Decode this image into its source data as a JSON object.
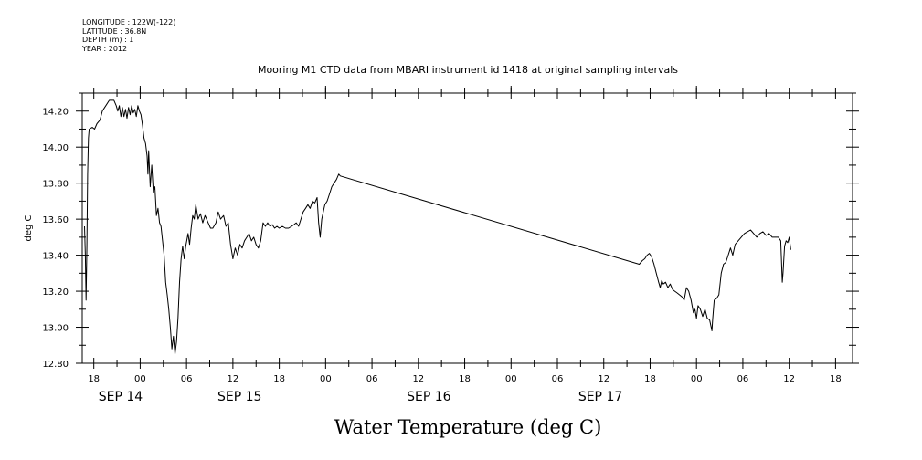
{
  "header_meta": [
    "LONGITUDE : 122W(-122)",
    "LATITUDE : 36.8N",
    "DEPTH (m) : 1",
    "YEAR : 2012"
  ],
  "chart_data": {
    "type": "line",
    "title": "Mooring M1 CTD data from MBARI instrument id 1418 at original sampling intervals",
    "xlabel": "Water Temperature (deg C)",
    "ylabel": "deg C",
    "x_units": "hours since 2012-09-14 00:00",
    "xlim": [
      -7.5,
      92.2
    ],
    "ylim": [
      12.8,
      14.3
    ],
    "y_ticks": [
      "12.80",
      "13.00",
      "13.20",
      "13.40",
      "13.60",
      "13.80",
      "14.00",
      "14.20"
    ],
    "y_tick_values": [
      12.8,
      13.0,
      13.2,
      13.4,
      13.6,
      13.8,
      14.0,
      14.2
    ],
    "x_hour_ticks": [
      {
        "h": -6,
        "label": "18"
      },
      {
        "h": 0,
        "label": "00"
      },
      {
        "h": 6,
        "label": "06"
      },
      {
        "h": 12,
        "label": "12"
      },
      {
        "h": 18,
        "label": "18"
      },
      {
        "h": 24,
        "label": "00"
      },
      {
        "h": 30,
        "label": "06"
      },
      {
        "h": 36,
        "label": "12"
      },
      {
        "h": 42,
        "label": "18"
      },
      {
        "h": 48,
        "label": "00"
      },
      {
        "h": 54,
        "label": "06"
      },
      {
        "h": 60,
        "label": "12"
      },
      {
        "h": 66,
        "label": "18"
      },
      {
        "h": 72,
        "label": "00"
      },
      {
        "h": 78,
        "label": "06"
      },
      {
        "h": 84,
        "label": "12"
      },
      {
        "h": 90,
        "label": "18"
      }
    ],
    "x_day_labels": [
      {
        "h": -5.4,
        "label": "SEP 14"
      },
      {
        "h": 10.0,
        "label": "SEP 15"
      },
      {
        "h": 34.5,
        "label": "SEP 16"
      },
      {
        "h": 56.7,
        "label": "SEP 17"
      }
    ],
    "grid": false,
    "series": [
      {
        "color": "#000000",
        "points": [
          [
            -7.2,
            13.56
          ],
          [
            -7.1,
            13.4
          ],
          [
            -7.0,
            13.15
          ],
          [
            -6.9,
            13.45
          ],
          [
            -6.8,
            13.85
          ],
          [
            -6.7,
            14.05
          ],
          [
            -6.6,
            14.1
          ],
          [
            -6.2,
            14.11
          ],
          [
            -5.9,
            14.1
          ],
          [
            -5.6,
            14.13
          ],
          [
            -5.2,
            14.15
          ],
          [
            -4.9,
            14.2
          ],
          [
            -4.6,
            14.22
          ],
          [
            -4.3,
            14.24
          ],
          [
            -4.0,
            14.26
          ],
          [
            -3.7,
            14.26
          ],
          [
            -3.4,
            14.26
          ],
          [
            -3.1,
            14.23
          ],
          [
            -2.9,
            14.2
          ],
          [
            -2.7,
            14.23
          ],
          [
            -2.5,
            14.17
          ],
          [
            -2.3,
            14.22
          ],
          [
            -2.1,
            14.17
          ],
          [
            -1.9,
            14.21
          ],
          [
            -1.7,
            14.16
          ],
          [
            -1.5,
            14.22
          ],
          [
            -1.3,
            14.18
          ],
          [
            -1.1,
            14.23
          ],
          [
            -0.9,
            14.19
          ],
          [
            -0.7,
            14.21
          ],
          [
            -0.5,
            14.17
          ],
          [
            -0.3,
            14.23
          ],
          [
            -0.1,
            14.2
          ],
          [
            0.1,
            14.18
          ],
          [
            0.3,
            14.12
          ],
          [
            0.5,
            14.05
          ],
          [
            0.7,
            14.02
          ],
          [
            0.9,
            13.95
          ],
          [
            1.0,
            13.85
          ],
          [
            1.1,
            13.98
          ],
          [
            1.3,
            13.78
          ],
          [
            1.5,
            13.9
          ],
          [
            1.7,
            13.75
          ],
          [
            1.9,
            13.78
          ],
          [
            2.1,
            13.62
          ],
          [
            2.3,
            13.66
          ],
          [
            2.5,
            13.58
          ],
          [
            2.7,
            13.56
          ],
          [
            2.9,
            13.48
          ],
          [
            3.1,
            13.4
          ],
          [
            3.3,
            13.25
          ],
          [
            3.5,
            13.18
          ],
          [
            3.7,
            13.1
          ],
          [
            3.9,
            13.0
          ],
          [
            4.1,
            12.88
          ],
          [
            4.3,
            12.95
          ],
          [
            4.5,
            12.85
          ],
          [
            4.7,
            12.92
          ],
          [
            4.9,
            13.05
          ],
          [
            5.1,
            13.25
          ],
          [
            5.3,
            13.38
          ],
          [
            5.5,
            13.45
          ],
          [
            5.7,
            13.38
          ],
          [
            5.9,
            13.45
          ],
          [
            6.2,
            13.52
          ],
          [
            6.4,
            13.46
          ],
          [
            6.6,
            13.55
          ],
          [
            6.8,
            13.62
          ],
          [
            7.0,
            13.6
          ],
          [
            7.2,
            13.68
          ],
          [
            7.5,
            13.6
          ],
          [
            7.8,
            13.63
          ],
          [
            8.1,
            13.58
          ],
          [
            8.4,
            13.62
          ],
          [
            8.8,
            13.58
          ],
          [
            9.1,
            13.55
          ],
          [
            9.4,
            13.55
          ],
          [
            9.8,
            13.58
          ],
          [
            10.1,
            13.64
          ],
          [
            10.4,
            13.6
          ],
          [
            10.8,
            13.62
          ],
          [
            11.1,
            13.56
          ],
          [
            11.4,
            13.58
          ],
          [
            11.7,
            13.46
          ],
          [
            12.0,
            13.38
          ],
          [
            12.3,
            13.44
          ],
          [
            12.6,
            13.4
          ],
          [
            12.9,
            13.46
          ],
          [
            13.2,
            13.44
          ],
          [
            13.5,
            13.48
          ],
          [
            13.8,
            13.5
          ],
          [
            14.1,
            13.52
          ],
          [
            14.4,
            13.48
          ],
          [
            14.7,
            13.5
          ],
          [
            15.0,
            13.46
          ],
          [
            15.3,
            13.44
          ],
          [
            15.6,
            13.48
          ],
          [
            15.9,
            13.58
          ],
          [
            16.2,
            13.56
          ],
          [
            16.5,
            13.58
          ],
          [
            16.8,
            13.56
          ],
          [
            17.1,
            13.57
          ],
          [
            17.4,
            13.55
          ],
          [
            17.7,
            13.56
          ],
          [
            18.0,
            13.55
          ],
          [
            18.4,
            13.56
          ],
          [
            18.8,
            13.55
          ],
          [
            19.2,
            13.55
          ],
          [
            19.6,
            13.56
          ],
          [
            19.9,
            13.57
          ],
          [
            20.2,
            13.58
          ],
          [
            20.5,
            13.56
          ],
          [
            20.8,
            13.6
          ],
          [
            21.1,
            13.64
          ],
          [
            21.4,
            13.66
          ],
          [
            21.7,
            13.68
          ],
          [
            22.0,
            13.66
          ],
          [
            22.3,
            13.7
          ],
          [
            22.6,
            13.69
          ],
          [
            22.9,
            13.72
          ],
          [
            23.1,
            13.58
          ],
          [
            23.3,
            13.5
          ],
          [
            23.5,
            13.6
          ],
          [
            23.7,
            13.64
          ],
          [
            23.9,
            13.68
          ],
          [
            24.2,
            13.7
          ],
          [
            24.5,
            13.74
          ],
          [
            24.8,
            13.78
          ],
          [
            25.1,
            13.8
          ],
          [
            25.4,
            13.82
          ],
          [
            25.7,
            13.85
          ],
          [
            25.9,
            13.84
          ],
          [
            64.6,
            13.35
          ],
          [
            65.0,
            13.37
          ],
          [
            65.3,
            13.38
          ],
          [
            65.6,
            13.4
          ],
          [
            65.9,
            13.41
          ],
          [
            66.2,
            13.39
          ],
          [
            66.5,
            13.35
          ],
          [
            66.8,
            13.3
          ],
          [
            67.1,
            13.25
          ],
          [
            67.3,
            13.22
          ],
          [
            67.5,
            13.26
          ],
          [
            67.7,
            13.24
          ],
          [
            68.0,
            13.25
          ],
          [
            68.3,
            13.22
          ],
          [
            68.6,
            13.24
          ],
          [
            68.9,
            13.21
          ],
          [
            69.2,
            13.2
          ],
          [
            69.5,
            13.19
          ],
          [
            69.8,
            13.18
          ],
          [
            70.1,
            13.17
          ],
          [
            70.4,
            13.15
          ],
          [
            70.7,
            13.22
          ],
          [
            71.0,
            13.2
          ],
          [
            71.3,
            13.15
          ],
          [
            71.6,
            13.08
          ],
          [
            71.8,
            13.1
          ],
          [
            72.0,
            13.05
          ],
          [
            72.2,
            13.12
          ],
          [
            72.5,
            13.1
          ],
          [
            72.8,
            13.06
          ],
          [
            73.1,
            13.1
          ],
          [
            73.4,
            13.05
          ],
          [
            73.7,
            13.04
          ],
          [
            73.9,
            13.0
          ],
          [
            74.0,
            12.98
          ],
          [
            74.1,
            13.05
          ],
          [
            74.3,
            13.15
          ],
          [
            74.6,
            13.16
          ],
          [
            74.9,
            13.18
          ],
          [
            75.2,
            13.3
          ],
          [
            75.5,
            13.35
          ],
          [
            75.8,
            13.36
          ],
          [
            76.1,
            13.4
          ],
          [
            76.4,
            13.44
          ],
          [
            76.7,
            13.4
          ],
          [
            77.0,
            13.46
          ],
          [
            77.4,
            13.48
          ],
          [
            77.8,
            13.5
          ],
          [
            78.2,
            13.52
          ],
          [
            78.6,
            13.53
          ],
          [
            79.0,
            13.54
          ],
          [
            79.4,
            13.52
          ],
          [
            79.8,
            13.5
          ],
          [
            80.2,
            13.52
          ],
          [
            80.6,
            13.53
          ],
          [
            81.0,
            13.51
          ],
          [
            81.4,
            13.52
          ],
          [
            81.8,
            13.5
          ],
          [
            82.2,
            13.5
          ],
          [
            82.6,
            13.5
          ],
          [
            82.9,
            13.48
          ],
          [
            83.1,
            13.25
          ],
          [
            83.2,
            13.3
          ],
          [
            83.4,
            13.45
          ],
          [
            83.6,
            13.48
          ],
          [
            83.8,
            13.47
          ],
          [
            84.0,
            13.5
          ],
          [
            84.2,
            13.43
          ]
        ]
      }
    ]
  }
}
